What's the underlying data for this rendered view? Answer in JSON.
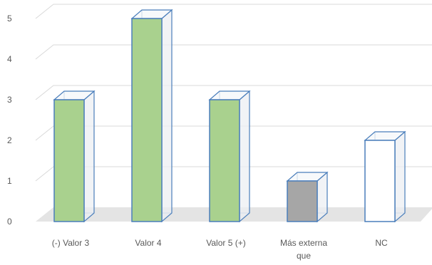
{
  "chart_data": {
    "type": "bar",
    "style": "3d-column",
    "categories": [
      "(-) Valor 3",
      "Valor 4",
      "Valor 5 (+)",
      "Más externa que",
      "NC"
    ],
    "category_lines": [
      [
        "(-) Valor 3"
      ],
      [
        "Valor 4"
      ],
      [
        "Valor 5 (+)"
      ],
      [
        "Más externa",
        "que"
      ],
      [
        "NC"
      ]
    ],
    "values": [
      3,
      5,
      3,
      1,
      2
    ],
    "bar_colors": [
      "#A9D18E",
      "#A9D18E",
      "#A9D18E",
      "#A6A6A6",
      "#FFFFFF"
    ],
    "edge_color": "#4A7EBB",
    "ylim": [
      0,
      5
    ],
    "yticks": [
      "0",
      "1",
      "2",
      "3",
      "4",
      "5"
    ],
    "grid": true,
    "title": "",
    "xlabel": "",
    "ylabel": ""
  }
}
